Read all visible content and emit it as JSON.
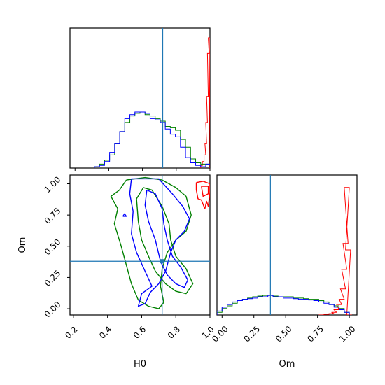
{
  "chart_data": {
    "type": "corner",
    "parameters": [
      "H0",
      "Om"
    ],
    "truths": {
      "H0": 0.72,
      "Om": 0.38
    },
    "colors": {
      "truth": "#1f77b4",
      "red": "#ff0000",
      "green": "#008000",
      "blue": "#0000ff"
    },
    "panels": [
      {
        "id": "hist-H0",
        "type": "histogram",
        "xlim": [
          0.17,
          1.0
        ],
        "series": [
          {
            "color": "red",
            "x": [
              0.95,
              0.96,
              0.97,
              0.975,
              0.98,
              0.985,
              0.99,
              0.995,
              1.0
            ],
            "y": [
              0.02,
              0.05,
              0.1,
              0.19,
              0.35,
              0.55,
              0.88,
              1.0,
              0.0
            ]
          },
          {
            "color": "green",
            "x": [
              0.33,
              0.36,
              0.39,
              0.42,
              0.45,
              0.48,
              0.51,
              0.54,
              0.57,
              0.6,
              0.63,
              0.66,
              0.69,
              0.72,
              0.75,
              0.78,
              0.81,
              0.84,
              0.87,
              0.9,
              0.93,
              0.96,
              0.99
            ],
            "y": [
              0.01,
              0.03,
              0.06,
              0.1,
              0.19,
              0.28,
              0.35,
              0.4,
              0.42,
              0.43,
              0.41,
              0.4,
              0.38,
              0.36,
              0.32,
              0.31,
              0.29,
              0.22,
              0.16,
              0.07,
              0.04,
              0.03,
              0.03
            ]
          },
          {
            "color": "blue",
            "x": [
              0.33,
              0.36,
              0.39,
              0.42,
              0.45,
              0.48,
              0.51,
              0.54,
              0.57,
              0.6,
              0.63,
              0.66,
              0.69,
              0.72,
              0.75,
              0.78,
              0.81,
              0.84,
              0.87,
              0.9,
              0.93,
              0.96,
              0.99
            ],
            "y": [
              0.01,
              0.02,
              0.05,
              0.12,
              0.19,
              0.28,
              0.38,
              0.41,
              0.43,
              0.43,
              0.42,
              0.38,
              0.37,
              0.35,
              0.3,
              0.26,
              0.24,
              0.16,
              0.08,
              0.04,
              0.02,
              0.01,
              0.03
            ]
          }
        ]
      },
      {
        "id": "contour-H0-Om",
        "type": "contour",
        "xlabel": "H0",
        "ylabel": "Om",
        "xlim": [
          0.18,
          1.0
        ],
        "ylim": [
          -0.05,
          1.07
        ],
        "xticks": [
          "0.2",
          "0.4",
          "0.6",
          "0.8",
          "1.0"
        ],
        "xtick_values": [
          0.2,
          0.4,
          0.6,
          0.8,
          1.0
        ],
        "yticks": [
          "0.00",
          "0.25",
          "0.50",
          "0.75",
          "1.00"
        ],
        "ytick_values": [
          0.0,
          0.25,
          0.5,
          0.75,
          1.0
        ],
        "contours": [
          {
            "color": "red",
            "points": [
              [
                0.92,
                1.01
              ],
              [
                0.96,
                1.02
              ],
              [
                1.0,
                1.0
              ],
              [
                1.0,
                0.93
              ],
              [
                0.99,
                0.82
              ],
              [
                0.98,
                0.86
              ],
              [
                0.97,
                0.8
              ],
              [
                0.95,
                0.87
              ],
              [
                0.93,
                0.88
              ],
              [
                0.92,
                0.95
              ],
              [
                0.92,
                1.01
              ]
            ]
          },
          {
            "color": "red",
            "points": [
              [
                0.95,
                0.98
              ],
              [
                0.99,
                0.98
              ],
              [
                0.99,
                0.92
              ],
              [
                0.96,
                0.9
              ],
              [
                0.95,
                0.98
              ]
            ]
          },
          {
            "color": "green",
            "points": [
              [
                0.51,
                1.03
              ],
              [
                0.47,
                0.95
              ],
              [
                0.42,
                0.9
              ],
              [
                0.46,
                0.8
              ],
              [
                0.44,
                0.68
              ],
              [
                0.48,
                0.5
              ],
              [
                0.51,
                0.35
              ],
              [
                0.54,
                0.2
              ],
              [
                0.58,
                0.07
              ],
              [
                0.64,
                0.02
              ],
              [
                0.7,
                0.0
              ],
              [
                0.73,
                0.05
              ],
              [
                0.71,
                0.18
              ],
              [
                0.72,
                0.32
              ],
              [
                0.75,
                0.45
              ],
              [
                0.8,
                0.55
              ],
              [
                0.86,
                0.62
              ],
              [
                0.89,
                0.75
              ],
              [
                0.86,
                0.9
              ],
              [
                0.8,
                0.97
              ],
              [
                0.72,
                1.03
              ],
              [
                0.62,
                1.05
              ],
              [
                0.51,
                1.03
              ]
            ]
          },
          {
            "color": "green",
            "points": [
              [
                0.61,
                0.97
              ],
              [
                0.57,
                0.88
              ],
              [
                0.58,
                0.7
              ],
              [
                0.6,
                0.55
              ],
              [
                0.64,
                0.42
              ],
              [
                0.68,
                0.3
              ],
              [
                0.74,
                0.2
              ],
              [
                0.8,
                0.14
              ],
              [
                0.86,
                0.12
              ],
              [
                0.9,
                0.2
              ],
              [
                0.86,
                0.32
              ],
              [
                0.8,
                0.42
              ],
              [
                0.77,
                0.55
              ],
              [
                0.76,
                0.68
              ],
              [
                0.72,
                0.82
              ],
              [
                0.66,
                0.95
              ],
              [
                0.61,
                0.97
              ]
            ]
          },
          {
            "color": "blue",
            "points": [
              [
                0.54,
                1.04
              ],
              [
                0.53,
                0.92
              ],
              [
                0.55,
                0.78
              ],
              [
                0.54,
                0.6
              ],
              [
                0.57,
                0.45
              ],
              [
                0.62,
                0.3
              ],
              [
                0.66,
                0.18
              ],
              [
                0.6,
                0.12
              ],
              [
                0.58,
                0.02
              ],
              [
                0.62,
                0.04
              ],
              [
                0.65,
                0.13
              ],
              [
                0.7,
                0.2
              ],
              [
                0.74,
                0.3
              ],
              [
                0.77,
                0.45
              ],
              [
                0.8,
                0.55
              ],
              [
                0.85,
                0.62
              ],
              [
                0.88,
                0.72
              ],
              [
                0.84,
                0.82
              ],
              [
                0.78,
                0.92
              ],
              [
                0.7,
                1.04
              ],
              [
                0.54,
                1.04
              ]
            ]
          },
          {
            "color": "blue",
            "points": [
              [
                0.63,
                0.95
              ],
              [
                0.62,
                0.83
              ],
              [
                0.64,
                0.7
              ],
              [
                0.68,
                0.55
              ],
              [
                0.71,
                0.38
              ],
              [
                0.75,
                0.27
              ],
              [
                0.8,
                0.2
              ],
              [
                0.85,
                0.17
              ],
              [
                0.87,
                0.23
              ],
              [
                0.83,
                0.33
              ],
              [
                0.78,
                0.42
              ],
              [
                0.75,
                0.55
              ],
              [
                0.73,
                0.68
              ],
              [
                0.72,
                0.8
              ],
              [
                0.68,
                0.92
              ],
              [
                0.63,
                0.95
              ]
            ]
          },
          {
            "color": "blue",
            "points": [
              [
                0.49,
                0.74
              ],
              [
                0.5,
                0.76
              ],
              [
                0.51,
                0.74
              ],
              [
                0.49,
                0.74
              ]
            ]
          }
        ]
      },
      {
        "id": "hist-Om",
        "type": "histogram",
        "xlabel": "Om",
        "xlim": [
          -0.04,
          1.06
        ],
        "xticks": [
          "0.00",
          "0.25",
          "0.50",
          "0.75",
          "1.00"
        ],
        "xtick_values": [
          0.0,
          0.25,
          0.5,
          0.75,
          1.0
        ],
        "series": [
          {
            "color": "red",
            "x": [
              0.78,
              0.82,
              0.86,
              0.88,
              0.9,
              0.92,
              0.94,
              0.95,
              0.96,
              0.97,
              0.98,
              0.99,
              1.0
            ],
            "y": [
              0.0,
              0.005,
              0.01,
              0.02,
              0.04,
              0.08,
              0.12,
              0.2,
              0.35,
              0.55,
              0.98,
              0.5,
              0.0
            ]
          },
          {
            "color": "green",
            "x": [
              -0.02,
              0.02,
              0.06,
              0.1,
              0.14,
              0.18,
              0.22,
              0.26,
              0.3,
              0.34,
              0.38,
              0.42,
              0.46,
              0.5,
              0.54,
              0.58,
              0.62,
              0.66,
              0.7,
              0.74,
              0.78,
              0.82,
              0.86,
              0.9,
              0.94,
              0.98
            ],
            "y": [
              0.02,
              0.05,
              0.07,
              0.09,
              0.11,
              0.12,
              0.13,
              0.14,
              0.145,
              0.15,
              0.15,
              0.145,
              0.14,
              0.14,
              0.14,
              0.13,
              0.13,
              0.125,
              0.12,
              0.12,
              0.11,
              0.1,
              0.08,
              0.07,
              0.05,
              0.02
            ]
          },
          {
            "color": "blue",
            "x": [
              -0.02,
              0.02,
              0.06,
              0.1,
              0.14,
              0.18,
              0.22,
              0.26,
              0.3,
              0.34,
              0.38,
              0.42,
              0.46,
              0.5,
              0.54,
              0.58,
              0.62,
              0.66,
              0.7,
              0.74,
              0.78,
              0.82,
              0.86,
              0.9,
              0.94,
              0.98
            ],
            "y": [
              0.03,
              0.06,
              0.08,
              0.1,
              0.11,
              0.12,
              0.125,
              0.13,
              0.14,
              0.14,
              0.15,
              0.14,
              0.14,
              0.13,
              0.13,
              0.125,
              0.12,
              0.12,
              0.115,
              0.11,
              0.1,
              0.09,
              0.08,
              0.06,
              0.04,
              0.02
            ]
          }
        ]
      }
    ]
  }
}
